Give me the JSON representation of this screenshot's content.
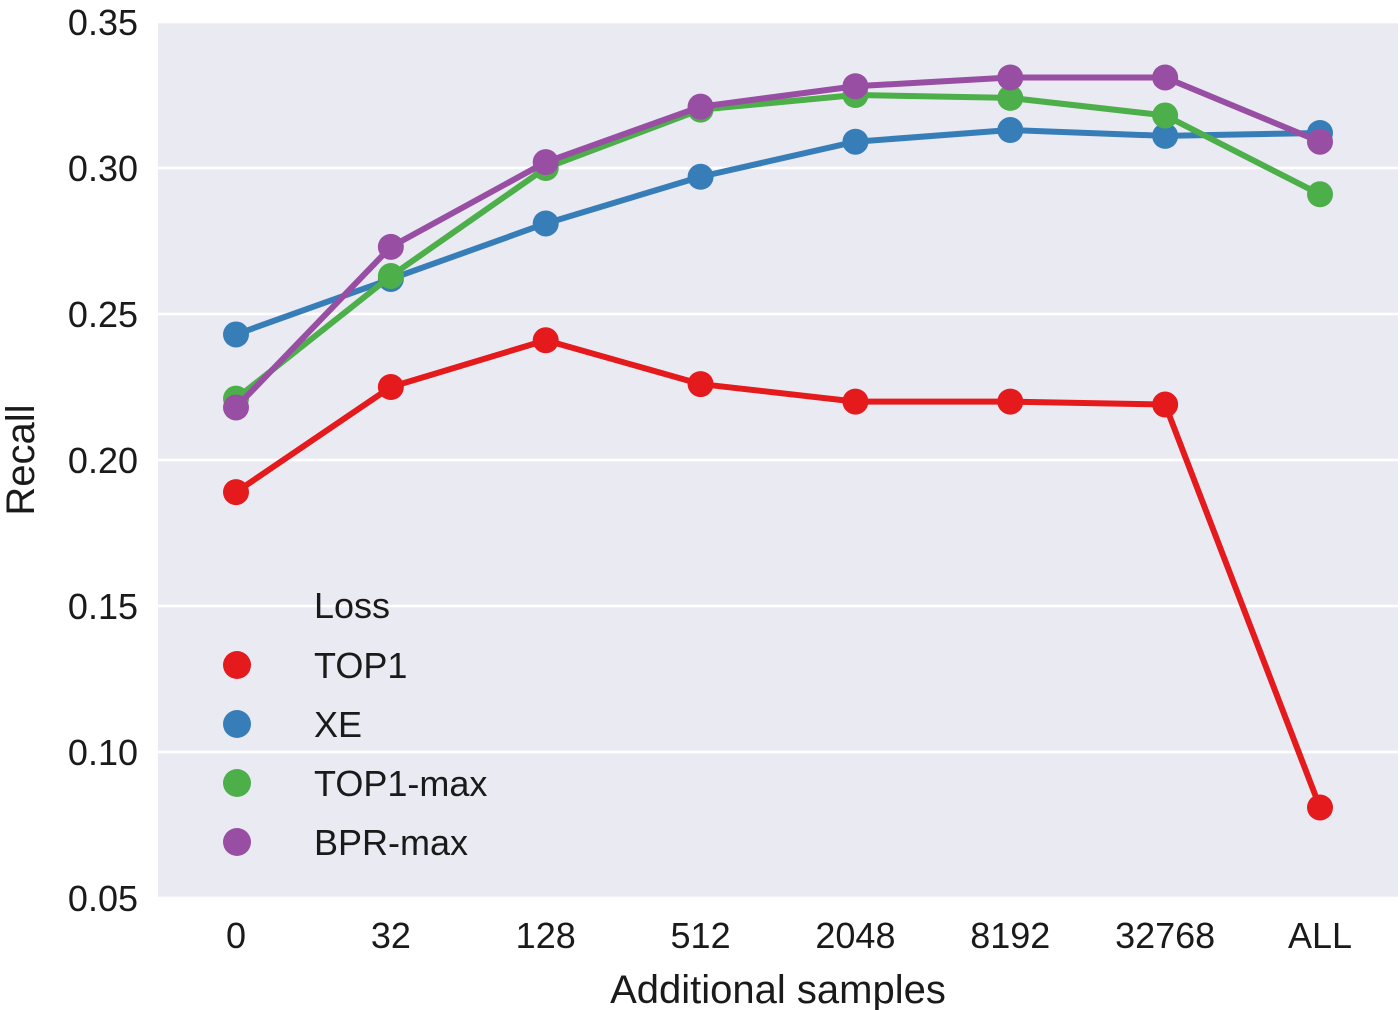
{
  "chart_data": {
    "type": "line",
    "title": "",
    "xlabel": "Additional samples",
    "ylabel": "Recall",
    "categories": [
      "0",
      "32",
      "128",
      "512",
      "2048",
      "8192",
      "32768",
      "ALL"
    ],
    "ylim": [
      0.05,
      0.35
    ],
    "yticks": [
      "0.05",
      "0.10",
      "0.15",
      "0.20",
      "0.25",
      "0.30",
      "0.35"
    ],
    "grid": true,
    "legend": {
      "title": "Loss",
      "placement": "lower-left"
    },
    "series": [
      {
        "name": "TOP1",
        "color": "#e41a1c",
        "values": [
          0.189,
          0.225,
          0.241,
          0.226,
          0.22,
          0.22,
          0.219,
          0.081
        ]
      },
      {
        "name": "XE",
        "color": "#377eb8",
        "values": [
          0.243,
          0.262,
          0.281,
          0.297,
          0.309,
          0.313,
          0.311,
          0.312
        ]
      },
      {
        "name": "TOP1-max",
        "color": "#4daf4a",
        "values": [
          0.221,
          0.263,
          0.3,
          0.32,
          0.325,
          0.324,
          0.318,
          0.291
        ]
      },
      {
        "name": "BPR-max",
        "color": "#984ea3",
        "values": [
          0.218,
          0.273,
          0.302,
          0.321,
          0.328,
          0.331,
          0.331,
          0.309
        ]
      }
    ]
  }
}
